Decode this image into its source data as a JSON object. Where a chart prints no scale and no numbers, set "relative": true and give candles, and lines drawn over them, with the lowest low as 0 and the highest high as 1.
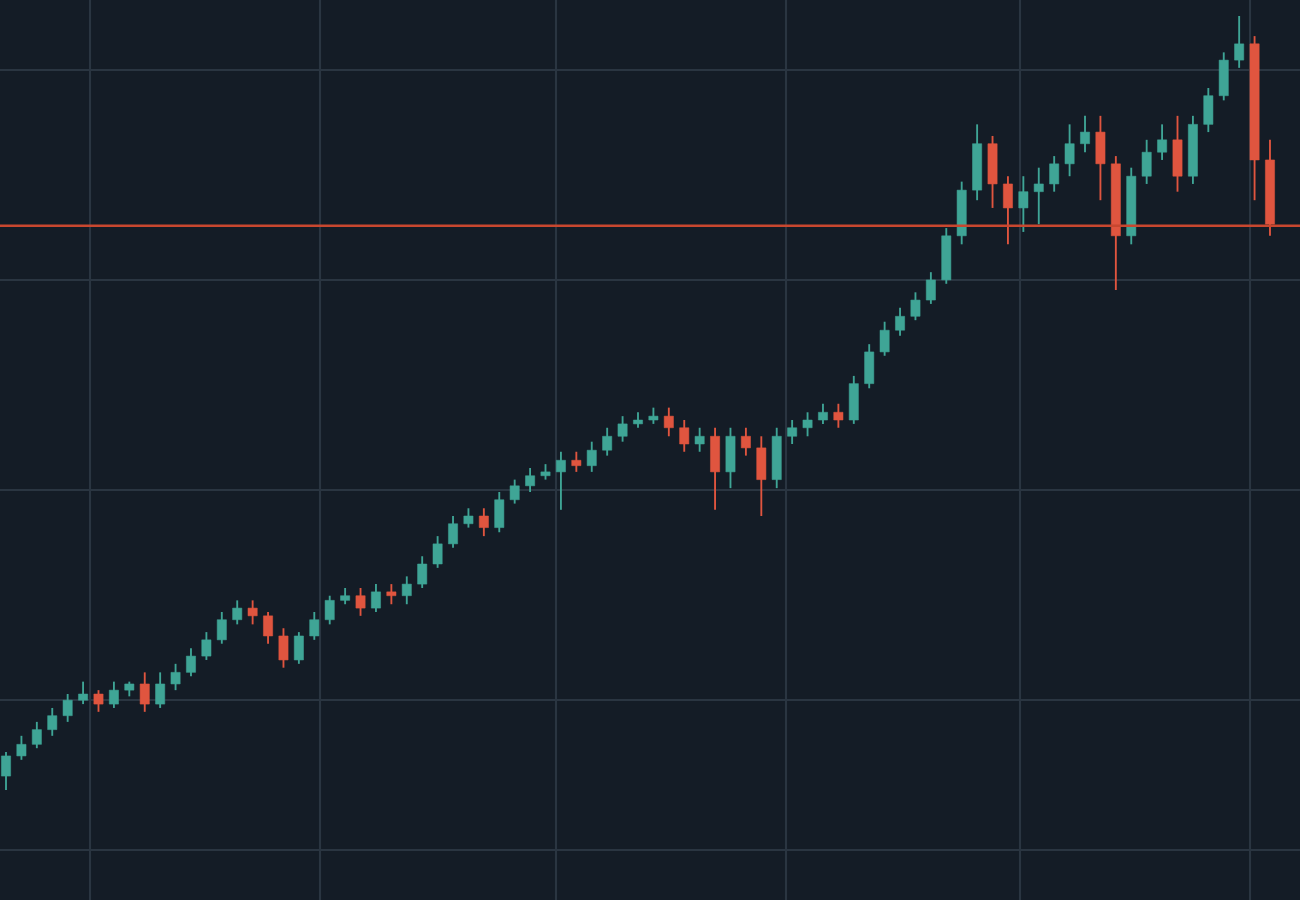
{
  "chart_data": {
    "type": "candlestick",
    "relative": true,
    "grid": true,
    "categories": [
      null,
      null,
      null,
      null,
      null,
      null,
      null,
      null,
      null,
      null,
      null,
      null,
      null,
      null,
      null,
      null,
      null,
      null,
      null,
      null,
      null,
      null,
      null,
      null,
      null,
      null,
      null,
      null,
      null,
      null,
      null,
      null,
      null,
      null,
      null,
      null,
      null,
      null,
      null,
      null,
      null,
      null,
      null,
      null,
      null,
      null,
      null,
      null,
      null,
      null,
      null,
      null,
      null,
      null,
      null,
      null,
      null,
      null,
      null,
      null,
      null,
      null,
      null,
      null,
      null,
      null,
      null,
      null,
      null,
      null,
      null,
      null,
      null,
      null,
      null,
      null,
      null,
      null,
      null,
      null,
      null,
      null,
      null
    ],
    "ohlc": [
      [
        0.018,
        0.049,
        0,
        0.044
      ],
      [
        0.044,
        0.07,
        0.039,
        0.059
      ],
      [
        0.059,
        0.088,
        0.054,
        0.078
      ],
      [
        0.078,
        0.106,
        0.07,
        0.096
      ],
      [
        0.096,
        0.124,
        0.088,
        0.116
      ],
      [
        0.116,
        0.14,
        0.111,
        0.124
      ],
      [
        0.124,
        0.129,
        0.101,
        0.111
      ],
      [
        0.111,
        0.14,
        0.106,
        0.129
      ],
      [
        0.129,
        0.14,
        0.121,
        0.137
      ],
      [
        0.137,
        0.152,
        0.101,
        0.111
      ],
      [
        0.111,
        0.152,
        0.106,
        0.137
      ],
      [
        0.137,
        0.163,
        0.129,
        0.152
      ],
      [
        0.152,
        0.183,
        0.147,
        0.173
      ],
      [
        0.173,
        0.204,
        0.168,
        0.194
      ],
      [
        0.194,
        0.23,
        0.189,
        0.22
      ],
      [
        0.22,
        0.245,
        0.214,
        0.235
      ],
      [
        0.235,
        0.245,
        0.214,
        0.225
      ],
      [
        0.225,
        0.23,
        0.189,
        0.199
      ],
      [
        0.199,
        0.209,
        0.158,
        0.168
      ],
      [
        0.168,
        0.204,
        0.163,
        0.199
      ],
      [
        0.199,
        0.23,
        0.194,
        0.22
      ],
      [
        0.22,
        0.251,
        0.214,
        0.245
      ],
      [
        0.245,
        0.261,
        0.24,
        0.251
      ],
      [
        0.251,
        0.261,
        0.225,
        0.235
      ],
      [
        0.235,
        0.266,
        0.23,
        0.256
      ],
      [
        0.256,
        0.266,
        0.24,
        0.251
      ],
      [
        0.251,
        0.276,
        0.24,
        0.266
      ],
      [
        0.266,
        0.302,
        0.261,
        0.292
      ],
      [
        0.292,
        0.328,
        0.287,
        0.318
      ],
      [
        0.318,
        0.354,
        0.313,
        0.344
      ],
      [
        0.344,
        0.364,
        0.339,
        0.354
      ],
      [
        0.354,
        0.364,
        0.328,
        0.339
      ],
      [
        0.339,
        0.385,
        0.333,
        0.375
      ],
      [
        0.375,
        0.401,
        0.37,
        0.393
      ],
      [
        0.393,
        0.416,
        0.385,
        0.406
      ],
      [
        0.406,
        0.421,
        0.401,
        0.411
      ],
      [
        0.411,
        0.437,
        0.362,
        0.426
      ],
      [
        0.426,
        0.437,
        0.411,
        0.419
      ],
      [
        0.419,
        0.45,
        0.411,
        0.439
      ],
      [
        0.439,
        0.468,
        0.432,
        0.457
      ],
      [
        0.457,
        0.483,
        0.45,
        0.473
      ],
      [
        0.473,
        0.488,
        0.468,
        0.478
      ],
      [
        0.478,
        0.494,
        0.473,
        0.483
      ],
      [
        0.483,
        0.494,
        0.457,
        0.468
      ],
      [
        0.468,
        0.478,
        0.437,
        0.447
      ],
      [
        0.447,
        0.468,
        0.437,
        0.457
      ],
      [
        0.457,
        0.468,
        0.362,
        0.411
      ],
      [
        0.411,
        0.468,
        0.39,
        0.457
      ],
      [
        0.457,
        0.468,
        0.432,
        0.442
      ],
      [
        0.442,
        0.457,
        0.354,
        0.401
      ],
      [
        0.401,
        0.468,
        0.39,
        0.457
      ],
      [
        0.457,
        0.478,
        0.447,
        0.468
      ],
      [
        0.468,
        0.488,
        0.457,
        0.478
      ],
      [
        0.478,
        0.499,
        0.473,
        0.488
      ],
      [
        0.488,
        0.499,
        0.468,
        0.478
      ],
      [
        0.478,
        0.535,
        0.473,
        0.525
      ],
      [
        0.525,
        0.576,
        0.519,
        0.566
      ],
      [
        0.566,
        0.605,
        0.561,
        0.594
      ],
      [
        0.594,
        0.623,
        0.587,
        0.612
      ],
      [
        0.612,
        0.643,
        0.607,
        0.633
      ],
      [
        0.633,
        0.669,
        0.628,
        0.659
      ],
      [
        0.659,
        0.726,
        0.654,
        0.716
      ],
      [
        0.716,
        0.786,
        0.705,
        0.775
      ],
      [
        0.775,
        0.86,
        0.762,
        0.835
      ],
      [
        0.835,
        0.845,
        0.752,
        0.783
      ],
      [
        0.783,
        0.793,
        0.705,
        0.752
      ],
      [
        0.752,
        0.793,
        0.721,
        0.773
      ],
      [
        0.773,
        0.804,
        0.731,
        0.783
      ],
      [
        0.783,
        0.819,
        0.773,
        0.809
      ],
      [
        0.809,
        0.86,
        0.793,
        0.835
      ],
      [
        0.835,
        0.871,
        0.824,
        0.85
      ],
      [
        0.85,
        0.871,
        0.762,
        0.809
      ],
      [
        0.809,
        0.819,
        0.646,
        0.716
      ],
      [
        0.716,
        0.804,
        0.705,
        0.793
      ],
      [
        0.793,
        0.84,
        0.783,
        0.824
      ],
      [
        0.824,
        0.86,
        0.814,
        0.84
      ],
      [
        0.84,
        0.871,
        0.773,
        0.793
      ],
      [
        0.793,
        0.871,
        0.783,
        0.86
      ],
      [
        0.86,
        0.907,
        0.85,
        0.897
      ],
      [
        0.897,
        0.953,
        0.891,
        0.943
      ],
      [
        0.943,
        1,
        0.933,
        0.964
      ],
      [
        0.964,
        0.974,
        0.762,
        0.814
      ],
      [
        0.814,
        0.84,
        0.716,
        0.731
      ]
    ],
    "colors": [
      "#3fa596",
      "#3fa596",
      "#3fa596",
      "#3fa596",
      "#3fa596",
      "#3fa596",
      "#e0553f",
      "#3fa596",
      "#3fa596",
      "#e0553f",
      "#3fa596",
      "#3fa596",
      "#3fa596",
      "#3fa596",
      "#3fa596",
      "#3fa596",
      "#e0553f",
      "#e0553f",
      "#e0553f",
      "#3fa596",
      "#3fa596",
      "#3fa596",
      "#3fa596",
      "#e0553f",
      "#3fa596",
      "#e0553f",
      "#3fa596",
      "#3fa596",
      "#3fa596",
      "#3fa596",
      "#3fa596",
      "#e0553f",
      "#3fa596",
      "#3fa596",
      "#3fa596",
      "#3fa596",
      "#3fa596",
      "#e0553f",
      "#3fa596",
      "#3fa596",
      "#3fa596",
      "#3fa596",
      "#3fa596",
      "#e0553f",
      "#e0553f",
      "#3fa596",
      "#e0553f",
      "#3fa596",
      "#e0553f",
      "#e0553f",
      "#3fa596",
      "#3fa596",
      "#3fa596",
      "#3fa596",
      "#e0553f",
      "#3fa596",
      "#3fa596",
      "#3fa596",
      "#3fa596",
      "#3fa596",
      "#3fa596",
      "#3fa596",
      "#3fa596",
      "#3fa596",
      "#e0553f",
      "#e0553f",
      "#3fa596",
      "#3fa596",
      "#3fa596",
      "#3fa596",
      "#3fa596",
      "#e0553f",
      "#e0553f",
      "#3fa596",
      "#3fa596",
      "#3fa596",
      "#e0553f",
      "#3fa596",
      "#3fa596",
      "#3fa596",
      "#3fa596",
      "#e0553f",
      "#e0553f"
    ],
    "ref_lines": [
      {
        "axis": "y",
        "value": 0.729,
        "color": "#c8472f"
      }
    ]
  }
}
